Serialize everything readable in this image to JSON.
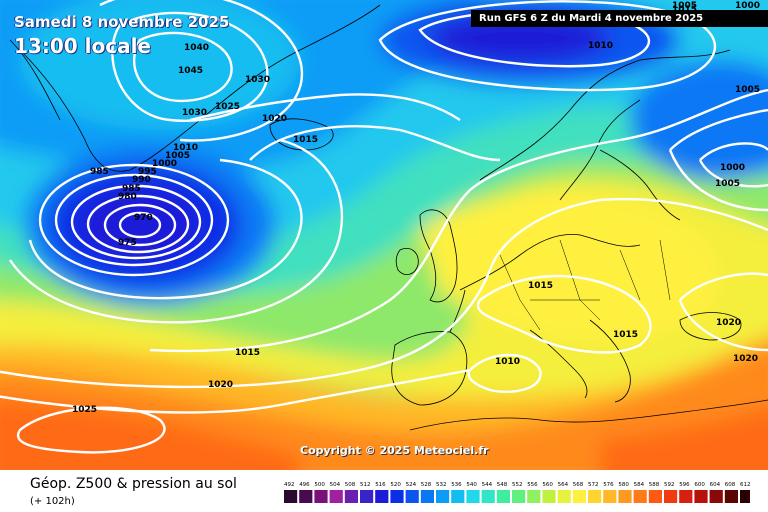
{
  "header": {
    "date": "Samedi 8 novembre 2025",
    "time": "13:00 locale",
    "run": "Run GFS 6 Z du Mardi 4 novembre 2025"
  },
  "copyright": "Copyright © 2025 Meteociel.fr",
  "footer": {
    "title": "Géop. Z500 & pression au sol",
    "subtitle": "(+ 102h)"
  },
  "scale": {
    "values": [
      "492",
      "496",
      "500",
      "504",
      "508",
      "512",
      "516",
      "520",
      "524",
      "528",
      "532",
      "536",
      "540",
      "544",
      "548",
      "552",
      "556",
      "560",
      "564",
      "568",
      "572",
      "576",
      "580",
      "584",
      "588",
      "592",
      "596",
      "600",
      "604",
      "608",
      "612"
    ],
    "colors": [
      "#2a0a2e",
      "#4a0a50",
      "#7a107a",
      "#a020a0",
      "#6a1fb0",
      "#3a23c8",
      "#1c1cd8",
      "#0b2fe6",
      "#0a55f0",
      "#0a78f5",
      "#0a9cf6",
      "#12bdf0",
      "#20d8e8",
      "#30e6c8",
      "#40eca0",
      "#60f080",
      "#90f060",
      "#c0f040",
      "#e8f040",
      "#ffef40",
      "#ffd430",
      "#ffb828",
      "#ff9a20",
      "#ff7a18",
      "#ff5a14",
      "#f03a12",
      "#d8200e",
      "#b8100c",
      "#8a0808",
      "#5a0404",
      "#2a0000"
    ]
  },
  "isobars": [
    {
      "label": "1040"
    },
    {
      "label": "1045"
    },
    {
      "label": "1030"
    },
    {
      "label": "1030"
    },
    {
      "label": "1025"
    },
    {
      "label": "1020"
    },
    {
      "label": "1015"
    },
    {
      "label": "1010"
    },
    {
      "label": "1005"
    },
    {
      "label": "1000"
    },
    {
      "label": "995"
    },
    {
      "label": "990"
    },
    {
      "label": "985"
    },
    {
      "label": "985"
    },
    {
      "label": "980"
    },
    {
      "label": "970"
    },
    {
      "label": "975"
    },
    {
      "label": "1005"
    },
    {
      "label": "1010"
    },
    {
      "label": "1015"
    },
    {
      "label": "1005"
    },
    {
      "label": "1000"
    },
    {
      "label": "1005"
    },
    {
      "label": "1015"
    },
    {
      "label": "1015"
    },
    {
      "label": "1010"
    },
    {
      "label": "1020"
    },
    {
      "label": "1020"
    },
    {
      "label": "1015"
    },
    {
      "label": "1020"
    },
    {
      "label": "1025"
    },
    {
      "label": "1000"
    }
  ],
  "colors": {
    "isobar": "#ffffff",
    "coast": "#000000",
    "header_bar": "#000000"
  }
}
